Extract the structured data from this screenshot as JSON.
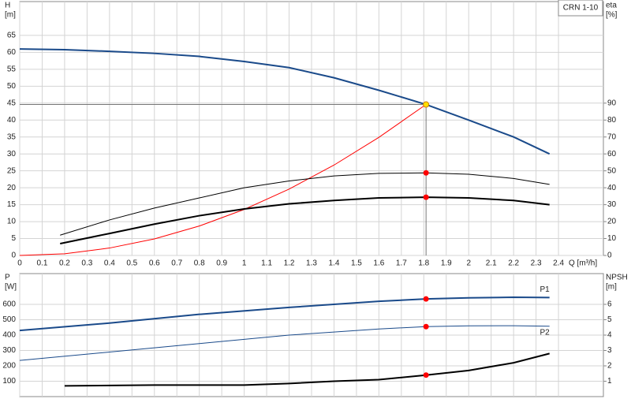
{
  "chart_data": [
    {
      "type": "line",
      "title": "CRN 1-10",
      "x_label": "Q [m³/h]",
      "y_label": "H",
      "y_unit": "[m]",
      "y2_label": "eta",
      "y2_unit": "[%]",
      "xlim": [
        0,
        2.6
      ],
      "xticks": [
        0,
        0.1,
        0.2,
        0.3,
        0.4,
        0.5,
        0.6,
        0.7,
        0.8,
        0.9,
        1,
        1.1,
        1.2,
        1.3,
        1.4,
        1.5,
        1.6,
        1.7,
        1.8,
        1.9,
        2,
        2.1,
        2.2,
        2.3,
        2.4
      ],
      "x_tick_labels": true,
      "ylim": [
        0,
        75
      ],
      "yticks": [
        0,
        5,
        10,
        15,
        20,
        25,
        30,
        35,
        40,
        45,
        50,
        55,
        60,
        65
      ],
      "y2lim": [
        0,
        150
      ],
      "y2ticks": [
        0,
        10,
        20,
        30,
        40,
        50,
        60,
        70,
        80,
        90
      ],
      "grid": true,
      "duty_x": 1.81,
      "reference_lines": true,
      "series": [
        {
          "color": "#1a4a8a",
          "width": 2,
          "marker_color": "#ffe000",
          "x": [
            0,
            0.2,
            0.4,
            0.6,
            0.8,
            1,
            1.2,
            1.4,
            1.6,
            1.81,
            2,
            2.2,
            2.36
          ],
          "values": [
            61,
            60.8,
            60.3,
            59.7,
            58.8,
            57.3,
            55.5,
            52.5,
            48.8,
            44.6,
            40,
            35,
            30
          ]
        },
        {
          "color": "#ff0000",
          "width": 1,
          "x": [
            0,
            0.2,
            0.4,
            0.6,
            0.8,
            1,
            1.2,
            1.4,
            1.6,
            1.81
          ],
          "values": [
            0,
            0.5,
            2.2,
            4.9,
            8.7,
            13.6,
            19.6,
            26.7,
            34.9,
            44.6
          ]
        },
        {
          "color": "#000000",
          "width": 1,
          "axis": "y2",
          "marker_color": "#ff0000",
          "x": [
            0.18,
            0.4,
            0.6,
            0.8,
            1,
            1.2,
            1.4,
            1.6,
            1.81,
            2,
            2.2,
            2.36
          ],
          "values": [
            12,
            21,
            28,
            34,
            40,
            44,
            47,
            48.5,
            48.8,
            48,
            45.5,
            42
          ]
        },
        {
          "color": "#000000",
          "width": 2,
          "axis": "y2",
          "marker_color": "#ff0000",
          "x": [
            0.18,
            0.4,
            0.6,
            0.8,
            1,
            1.2,
            1.4,
            1.6,
            1.81,
            2,
            2.2,
            2.36
          ],
          "values": [
            7,
            13,
            18.5,
            23.5,
            27.5,
            30.5,
            32.5,
            34,
            34.4,
            34,
            32.5,
            30
          ]
        }
      ]
    },
    {
      "type": "line",
      "y_label": "P",
      "y_unit": "[W]",
      "y2_label": "NPSH",
      "y2_unit": "[m]",
      "xlim": [
        0,
        2.6
      ],
      "xticks": [
        0,
        0.1,
        0.2,
        0.3,
        0.4,
        0.5,
        0.6,
        0.7,
        0.8,
        0.9,
        1,
        1.1,
        1.2,
        1.3,
        1.4,
        1.5,
        1.6,
        1.7,
        1.8,
        1.9,
        2,
        2.1,
        2.2,
        2.3,
        2.4
      ],
      "x_tick_labels": false,
      "ylim": [
        0,
        800
      ],
      "yticks": [
        100,
        200,
        300,
        400,
        500,
        600
      ],
      "y2lim": [
        0,
        8
      ],
      "y2ticks": [
        1,
        2,
        3,
        4,
        5,
        6
      ],
      "grid": true,
      "duty_x": 1.81,
      "reference_lines": false,
      "series": [
        {
          "name": "P1",
          "label_side": "above",
          "color": "#1a4a8a",
          "width": 2,
          "marker_color": "#ff0000",
          "x": [
            0,
            0.4,
            0.8,
            1.2,
            1.6,
            1.81,
            2,
            2.2,
            2.36
          ],
          "values": [
            430,
            478,
            535,
            580,
            620,
            635,
            642,
            646,
            644
          ]
        },
        {
          "name": "P2",
          "label_side": "below",
          "color": "#1a4a8a",
          "width": 1,
          "marker_color": "#ff0000",
          "x": [
            0,
            0.4,
            0.8,
            1.2,
            1.6,
            1.81,
            2,
            2.2,
            2.36
          ],
          "values": [
            235,
            290,
            345,
            400,
            440,
            455,
            460,
            461,
            458
          ]
        },
        {
          "color": "#000000",
          "width": 2,
          "axis": "y2",
          "marker_color": "#ff0000",
          "x": [
            0.2,
            0.6,
            1,
            1.2,
            1.4,
            1.6,
            1.81,
            2,
            2.2,
            2.36
          ],
          "values": [
            0.7,
            0.75,
            0.75,
            0.85,
            1,
            1.1,
            1.4,
            1.7,
            2.2,
            2.8
          ]
        }
      ]
    }
  ]
}
